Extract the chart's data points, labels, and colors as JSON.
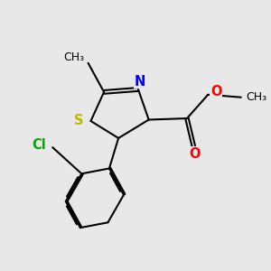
{
  "bg_color": "#e8e8e8",
  "bond_color": "#000000",
  "bond_width": 1.5,
  "atom_colors": {
    "S": "#bbbb00",
    "N": "#0000ff",
    "O": "#ff0000",
    "Cl": "#00aa00",
    "C": "#000000"
  }
}
